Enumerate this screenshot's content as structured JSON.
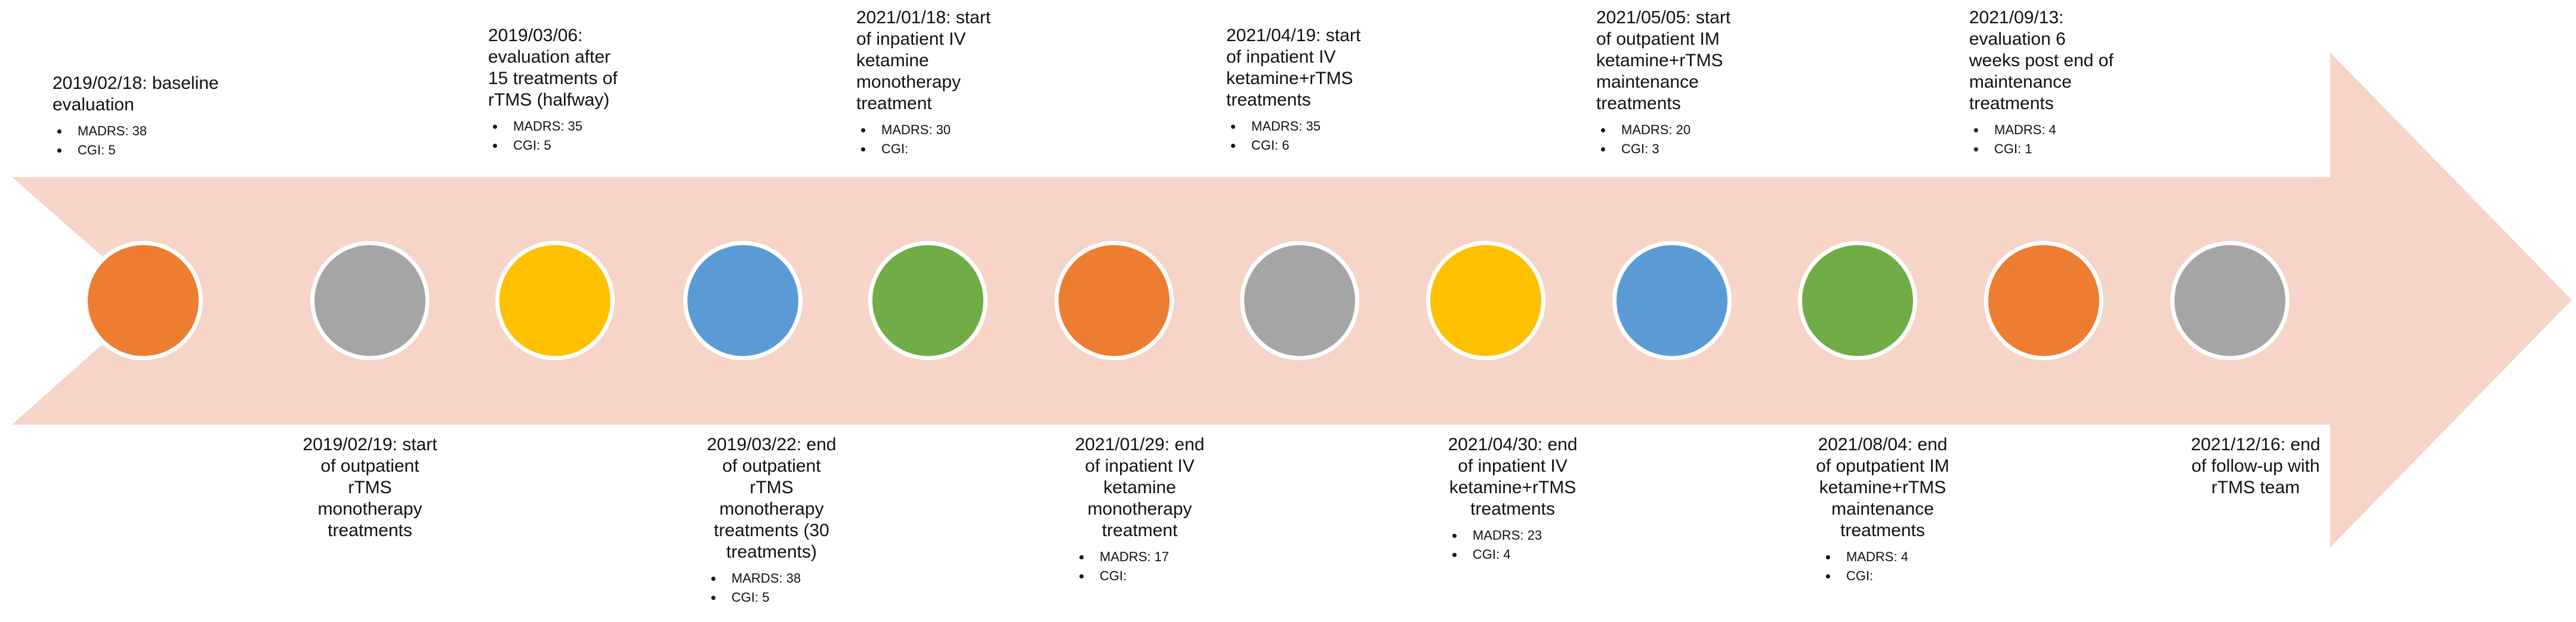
{
  "colors": {
    "arrow": "#f6d4c8",
    "orange": "#ed7d31",
    "gray": "#a5a5a5",
    "yellow": "#ffc000",
    "blue": "#5b9bd5",
    "green": "#70ad47"
  },
  "nodes": [
    {
      "color": "#ed7d31"
    },
    {
      "color": "#a5a5a5"
    },
    {
      "color": "#ffc000"
    },
    {
      "color": "#5b9bd5"
    },
    {
      "color": "#70ad47"
    },
    {
      "color": "#ed7d31"
    },
    {
      "color": "#a5a5a5"
    },
    {
      "color": "#ffc000"
    },
    {
      "color": "#5b9bd5"
    },
    {
      "color": "#70ad47"
    },
    {
      "color": "#ed7d31"
    },
    {
      "color": "#a5a5a5"
    }
  ],
  "events": [
    {
      "label": "2019/02/18: baseline\nevaluation",
      "bullets": [
        "MADRS: 38",
        "CGI: 5"
      ]
    },
    {
      "label": "2019/02/19: start\nof outpatient\nrTMS\nmonotherapy\ntreatments",
      "bullets": []
    },
    {
      "label": "2019/03/06:\nevaluation after\n15 treatments of\nrTMS (halfway)",
      "bullets": [
        "MADRS: 35",
        "CGI: 5"
      ]
    },
    {
      "label": "2019/03/22: end\nof outpatient\nrTMS\nmonotherapy\ntreatments (30\ntreatments)",
      "bullets": [
        "MARDS: 38",
        "CGI: 5"
      ]
    },
    {
      "label": "2021/01/18: start\nof inpatient IV\nketamine\nmonotherapy\ntreatment",
      "bullets": [
        "MADRS: 30",
        "CGI:"
      ]
    },
    {
      "label": "2021/01/29: end\nof inpatient IV\nketamine\nmonotherapy\ntreatment",
      "bullets": [
        "MADRS: 17",
        "CGI:"
      ]
    },
    {
      "label": "2021/04/19: start\nof inpatient IV\nketamine+rTMS\ntreatments",
      "bullets": [
        "MADRS: 35",
        "CGI: 6"
      ]
    },
    {
      "label": "2021/04/30: end\nof inpatient IV\nketamine+rTMS\ntreatments",
      "bullets": [
        "MADRS: 23",
        "CGI: 4"
      ]
    },
    {
      "label": "2021/05/05: start\nof outpatient IM\nketamine+rTMS\nmaintenance\ntreatments",
      "bullets": [
        "MADRS: 20",
        "CGI: 3"
      ]
    },
    {
      "label": "2021/08/04: end\nof oputpatient IM\nketamine+rTMS\nmaintenance\ntreatments",
      "bullets": [
        "MADRS: 4",
        "CGI:"
      ]
    },
    {
      "label": "2021/09/13:\nevaluation 6\nweeks post end of\nmaintenance\ntreatments",
      "bullets": [
        "MADRS: 4",
        "CGI: 1"
      ]
    },
    {
      "label": "2021/12/16: end\nof follow-up with\nrTMS team",
      "bullets": []
    }
  ]
}
